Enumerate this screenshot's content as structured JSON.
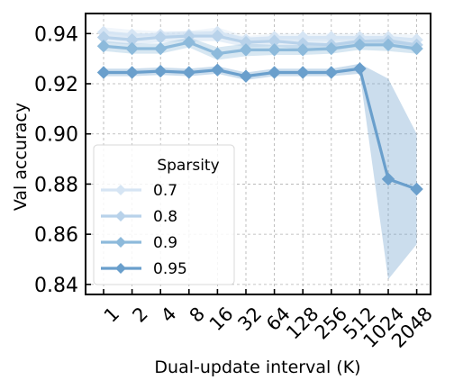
{
  "chart_data": {
    "type": "line",
    "xlabel": "Dual-update interval (K)",
    "ylabel": "Val accuracy",
    "categories": [
      "1",
      "2",
      "4",
      "8",
      "16",
      "32",
      "64",
      "128",
      "256",
      "512",
      "1024",
      "2048"
    ],
    "ylim": [
      0.836,
      0.948
    ],
    "yticks": [
      0.84,
      0.86,
      0.88,
      0.9,
      0.92,
      0.94
    ],
    "ytick_labels": [
      "0.84",
      "0.86",
      "0.88",
      "0.90",
      "0.92",
      "0.94"
    ],
    "grid": true,
    "legend": {
      "title": "Sparsity",
      "placement": "lower-left"
    },
    "series": [
      {
        "name": "0.7",
        "color": "#d6e5f4",
        "values": [
          0.9405,
          0.9395,
          0.9395,
          0.9395,
          0.9405,
          0.9375,
          0.9385,
          0.9385,
          0.9385,
          0.9385,
          0.9385,
          0.9375
        ],
        "lower": [
          0.9385,
          0.938,
          0.938,
          0.9385,
          0.9385,
          0.9365,
          0.937,
          0.937,
          0.937,
          0.937,
          0.937,
          0.9355
        ],
        "upper": [
          0.9425,
          0.9415,
          0.941,
          0.941,
          0.9425,
          0.939,
          0.94,
          0.94,
          0.94,
          0.94,
          0.94,
          0.9395
        ]
      },
      {
        "name": "0.8",
        "color": "#b8d2ea",
        "values": [
          0.9385,
          0.9375,
          0.9385,
          0.939,
          0.939,
          0.9365,
          0.937,
          0.936,
          0.9355,
          0.937,
          0.937,
          0.9355
        ],
        "lower": [
          0.9365,
          0.9355,
          0.9365,
          0.937,
          0.937,
          0.9345,
          0.935,
          0.9335,
          0.933,
          0.935,
          0.935,
          0.933
        ],
        "upper": [
          0.9405,
          0.9395,
          0.9405,
          0.941,
          0.941,
          0.9385,
          0.939,
          0.9385,
          0.938,
          0.939,
          0.939,
          0.938
        ]
      },
      {
        "name": "0.9",
        "color": "#8dbadb",
        "values": [
          0.935,
          0.934,
          0.934,
          0.9365,
          0.932,
          0.9335,
          0.9335,
          0.9335,
          0.934,
          0.9355,
          0.9355,
          0.934
        ],
        "lower": [
          0.933,
          0.932,
          0.932,
          0.9345,
          0.9295,
          0.931,
          0.9315,
          0.9315,
          0.932,
          0.9335,
          0.933,
          0.932
        ],
        "upper": [
          0.937,
          0.936,
          0.936,
          0.9385,
          0.9345,
          0.936,
          0.9355,
          0.9355,
          0.936,
          0.9375,
          0.938,
          0.936
        ]
      },
      {
        "name": "0.95",
        "color": "#6a9fcc",
        "values": [
          0.9245,
          0.9245,
          0.925,
          0.9245,
          0.9255,
          0.923,
          0.9245,
          0.9245,
          0.9245,
          0.926,
          0.882,
          0.878
        ],
        "lower": [
          0.923,
          0.923,
          0.9235,
          0.923,
          0.924,
          0.9215,
          0.923,
          0.923,
          0.923,
          0.924,
          0.842,
          0.856
        ],
        "upper": [
          0.926,
          0.926,
          0.9265,
          0.926,
          0.927,
          0.9245,
          0.926,
          0.926,
          0.926,
          0.928,
          0.922,
          0.9
        ]
      }
    ]
  }
}
